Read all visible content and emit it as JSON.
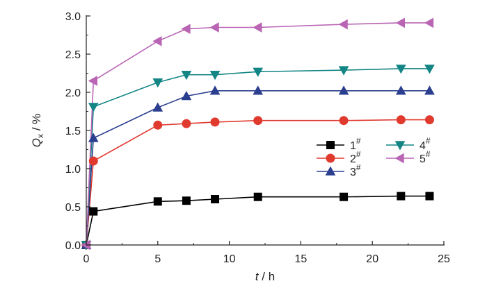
{
  "chart_data": {
    "type": "line",
    "xlabel": {
      "italic": "t",
      "rest": " / h"
    },
    "ylabel": {
      "italic": "Q",
      "sub": "x",
      "rest": " / %"
    },
    "xlim": [
      0,
      25
    ],
    "ylim": [
      0,
      3.0
    ],
    "xticks": [
      "0",
      "5",
      "10",
      "15",
      "20",
      "25"
    ],
    "yticks": [
      "0.0",
      "0.5",
      "1.0",
      "1.5",
      "2.0",
      "2.5",
      "3.0"
    ],
    "grid": false,
    "legend_position": "center-right",
    "series": [
      {
        "name": "1",
        "sup": "#",
        "color": "#000000",
        "marker": "square",
        "x": [
          0,
          0.5,
          5,
          7,
          9,
          12,
          18,
          22,
          24
        ],
        "y": [
          0,
          0.44,
          0.57,
          0.58,
          0.6,
          0.63,
          0.63,
          0.64,
          0.64
        ]
      },
      {
        "name": "2",
        "sup": "#",
        "color": "#e03a2f",
        "marker": "circle",
        "x": [
          0,
          0.5,
          5,
          7,
          9,
          12,
          18,
          22,
          24
        ],
        "y": [
          0,
          1.1,
          1.57,
          1.59,
          1.61,
          1.63,
          1.63,
          1.64,
          1.64
        ]
      },
      {
        "name": "3",
        "sup": "#",
        "color": "#2b3e8f",
        "marker": "triangle-up",
        "x": [
          0,
          0.5,
          5,
          7,
          9,
          12,
          18,
          22,
          24
        ],
        "y": [
          0,
          1.4,
          1.8,
          1.95,
          2.02,
          2.02,
          2.02,
          2.02,
          2.02
        ]
      },
      {
        "name": "4",
        "sup": "#",
        "color": "#138585",
        "marker": "triangle-down",
        "x": [
          0,
          0.5,
          5,
          7,
          9,
          12,
          18,
          22,
          24
        ],
        "y": [
          0,
          1.81,
          2.13,
          2.23,
          2.23,
          2.27,
          2.29,
          2.31,
          2.31
        ]
      },
      {
        "name": "5",
        "sup": "#",
        "color": "#b965b4",
        "marker": "triangle-left",
        "x": [
          0,
          0.5,
          5,
          7,
          9,
          12,
          18,
          22,
          24
        ],
        "y": [
          0,
          2.15,
          2.67,
          2.83,
          2.85,
          2.85,
          2.89,
          2.91,
          2.91
        ]
      }
    ]
  }
}
